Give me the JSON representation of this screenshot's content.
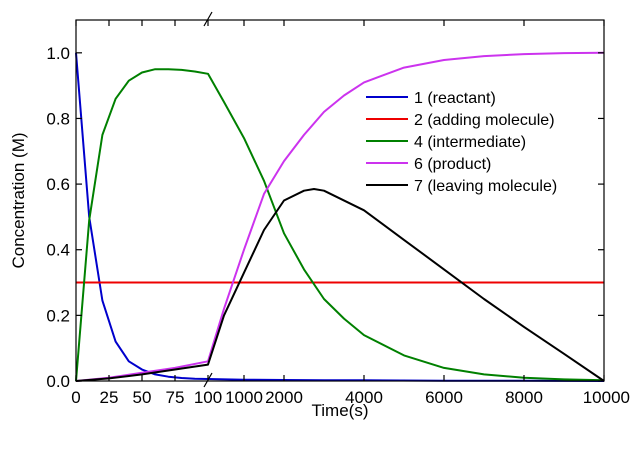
{
  "chart_data": {
    "type": "line",
    "title": "",
    "xlabel": "Time(s)",
    "ylabel": "Concentration (M)",
    "x_axis": {
      "broken": true,
      "segments": [
        {
          "range": [
            0,
            100
          ],
          "ticks": [
            0,
            25,
            50,
            75,
            100
          ]
        },
        {
          "range": [
            100,
            10000
          ],
          "ticks": [
            1000,
            2000,
            4000,
            6000,
            8000,
            10000
          ]
        }
      ],
      "tick_labels": [
        "0",
        "25",
        "50",
        "75",
        "100",
        "1000",
        "2000",
        "4000",
        "6000",
        "8000",
        "10000"
      ]
    },
    "ylim": [
      0,
      1.1
    ],
    "y_ticks": [
      0.0,
      0.2,
      0.4,
      0.6,
      0.8,
      1.0
    ],
    "y_tick_labels": [
      "0.0",
      "0.2",
      "0.4",
      "0.6",
      "0.8",
      "1.0"
    ],
    "grid": false,
    "legend_placement": "top-right",
    "series": [
      {
        "name": "1 (reactant)",
        "color": "#0000cc",
        "points": [
          [
            0,
            1.0
          ],
          [
            10,
            0.5
          ],
          [
            20,
            0.245
          ],
          [
            30,
            0.12
          ],
          [
            40,
            0.06
          ],
          [
            50,
            0.035
          ],
          [
            60,
            0.02
          ],
          [
            70,
            0.013
          ],
          [
            80,
            0.009
          ],
          [
            90,
            0.007
          ],
          [
            100,
            0.006
          ],
          [
            1000,
            0.004
          ],
          [
            2000,
            0.003
          ],
          [
            3000,
            0.002
          ],
          [
            4000,
            0.002
          ],
          [
            6000,
            0.001
          ],
          [
            8000,
            0.001
          ],
          [
            10000,
            0.0
          ]
        ]
      },
      {
        "name": "2 (adding molecule)",
        "color": "#ee0000",
        "points": [
          [
            0,
            0.3
          ],
          [
            100,
            0.3
          ],
          [
            10000,
            0.3
          ]
        ]
      },
      {
        "name": "4 (intermediate)",
        "color": "#008000",
        "points": [
          [
            0,
            0.0
          ],
          [
            10,
            0.49
          ],
          [
            20,
            0.75
          ],
          [
            30,
            0.86
          ],
          [
            40,
            0.915
          ],
          [
            50,
            0.94
          ],
          [
            60,
            0.95
          ],
          [
            70,
            0.95
          ],
          [
            80,
            0.948
          ],
          [
            90,
            0.943
          ],
          [
            100,
            0.936
          ],
          [
            500,
            0.85
          ],
          [
            1000,
            0.74
          ],
          [
            1500,
            0.61
          ],
          [
            2000,
            0.45
          ],
          [
            2500,
            0.34
          ],
          [
            3000,
            0.25
          ],
          [
            3500,
            0.19
          ],
          [
            4000,
            0.14
          ],
          [
            5000,
            0.078
          ],
          [
            6000,
            0.04
          ],
          [
            7000,
            0.02
          ],
          [
            8000,
            0.01
          ],
          [
            9000,
            0.005
          ],
          [
            10000,
            0.002
          ]
        ]
      },
      {
        "name": "6 (product)",
        "color": "#cc33ee",
        "points": [
          [
            0,
            0.0
          ],
          [
            25,
            0.01
          ],
          [
            50,
            0.025
          ],
          [
            75,
            0.04
          ],
          [
            100,
            0.06
          ],
          [
            500,
            0.22
          ],
          [
            1000,
            0.4
          ],
          [
            1500,
            0.57
          ],
          [
            2000,
            0.67
          ],
          [
            2500,
            0.75
          ],
          [
            3000,
            0.82
          ],
          [
            3500,
            0.87
          ],
          [
            4000,
            0.91
          ],
          [
            5000,
            0.955
          ],
          [
            6000,
            0.978
          ],
          [
            7000,
            0.99
          ],
          [
            8000,
            0.996
          ],
          [
            9000,
            0.999
          ],
          [
            10000,
            1.0
          ]
        ]
      },
      {
        "name": "7 (leaving molecule)",
        "color": "#000000",
        "points": [
          [
            0,
            0.0
          ],
          [
            25,
            0.008
          ],
          [
            50,
            0.02
          ],
          [
            75,
            0.035
          ],
          [
            100,
            0.05
          ],
          [
            500,
            0.2
          ],
          [
            1000,
            0.33
          ],
          [
            1500,
            0.46
          ],
          [
            2000,
            0.55
          ],
          [
            2500,
            0.58
          ],
          [
            2750,
            0.585
          ],
          [
            3000,
            0.58
          ],
          [
            4000,
            0.52
          ],
          [
            5000,
            0.43
          ],
          [
            6000,
            0.34
          ],
          [
            7000,
            0.25
          ],
          [
            8000,
            0.165
          ],
          [
            9000,
            0.083
          ],
          [
            10000,
            0.0
          ]
        ]
      }
    ]
  }
}
